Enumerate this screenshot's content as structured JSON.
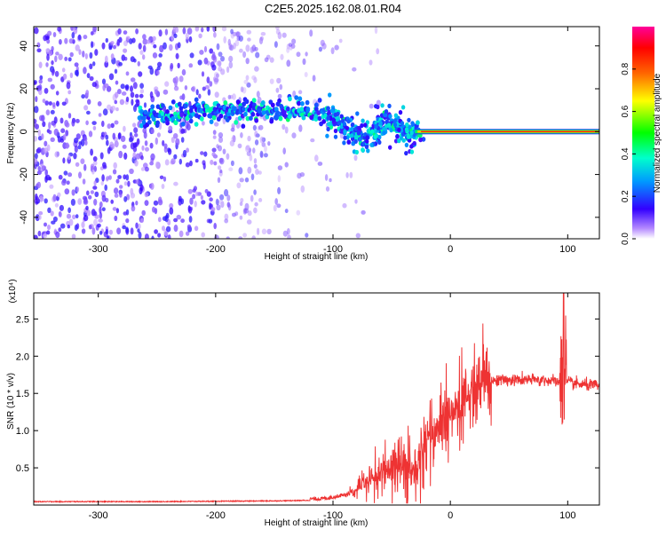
{
  "title": "C2E5.2025.162.08.01.R04",
  "chart_data": [
    {
      "type": "heatmap",
      "xlabel": "Height of straight line (km)",
      "ylabel": "Frequency (Hz)",
      "xlim": [
        -355,
        127
      ],
      "ylim": [
        -50,
        49
      ],
      "xticks": [
        -300,
        -200,
        -100,
        0,
        100
      ],
      "xtick_labels": [
        "-300",
        "-200",
        "-100",
        "0",
        "100"
      ],
      "yticks": [
        -40,
        -20,
        0,
        20,
        40
      ],
      "ytick_labels": [
        "-40",
        "-20",
        "0",
        "20",
        "40"
      ],
      "colorbar": {
        "label": "Normalized spectral amplitude",
        "range": [
          0,
          1
        ],
        "ticks": [
          0.0,
          0.2,
          0.4,
          0.6,
          0.8
        ],
        "tick_labels": [
          "0.0",
          "0.2",
          "0.4",
          "0.6",
          "0.8"
        ],
        "colors": [
          "#ffffff",
          "#a366ff",
          "#3300ff",
          "#0099ff",
          "#00ffcc",
          "#00ff00",
          "#ffff00",
          "#ff6600",
          "#ff0000",
          "#ff0099"
        ]
      },
      "ridge": {
        "x": [
          -265,
          -240,
          -215,
          -190,
          -165,
          -140,
          -120,
          -105,
          -95,
          -85,
          -75,
          -65,
          -55,
          -45,
          -35,
          -25,
          -15,
          -5,
          0,
          20,
          50,
          80,
          100,
          127
        ],
        "y": [
          7,
          8,
          9,
          10,
          10,
          10,
          9,
          8,
          4,
          0,
          -3,
          0,
          5,
          3,
          -1,
          0,
          0,
          1,
          1,
          0,
          0,
          0,
          0,
          0
        ]
      }
    },
    {
      "type": "line",
      "xlabel": "Height of straight line (km)",
      "ylabel": "SNR (10 * v/v)",
      "y_multiplier": "(x10⁴)",
      "xlim": [
        -355,
        127
      ],
      "ylim": [
        0,
        2.85
      ],
      "xticks": [
        -300,
        -200,
        -100,
        0,
        100
      ],
      "xtick_labels": [
        "-300",
        "-200",
        "-100",
        "0",
        "100"
      ],
      "yticks": [
        0.5,
        1.0,
        1.5,
        2.0,
        2.5
      ],
      "ytick_labels": [
        "0.5",
        "1.0",
        "1.5",
        "2.0",
        "2.5"
      ],
      "series": [
        {
          "color": "#ee3333",
          "x": [
            -355,
            -250,
            -150,
            -110,
            -100,
            -90,
            -80,
            -70,
            -60,
            -50,
            -40,
            -30,
            -20,
            -10,
            0,
            10,
            20,
            30,
            40,
            60,
            80,
            90,
            95,
            100,
            110,
            127
          ],
          "y": [
            0.04,
            0.04,
            0.05,
            0.06,
            0.08,
            0.12,
            0.22,
            0.35,
            0.45,
            0.5,
            0.55,
            0.45,
            0.9,
            1.05,
            1.2,
            1.35,
            1.55,
            1.65,
            1.68,
            1.68,
            1.68,
            1.66,
            1.65,
            1.65,
            1.62,
            1.6
          ]
        }
      ]
    }
  ]
}
